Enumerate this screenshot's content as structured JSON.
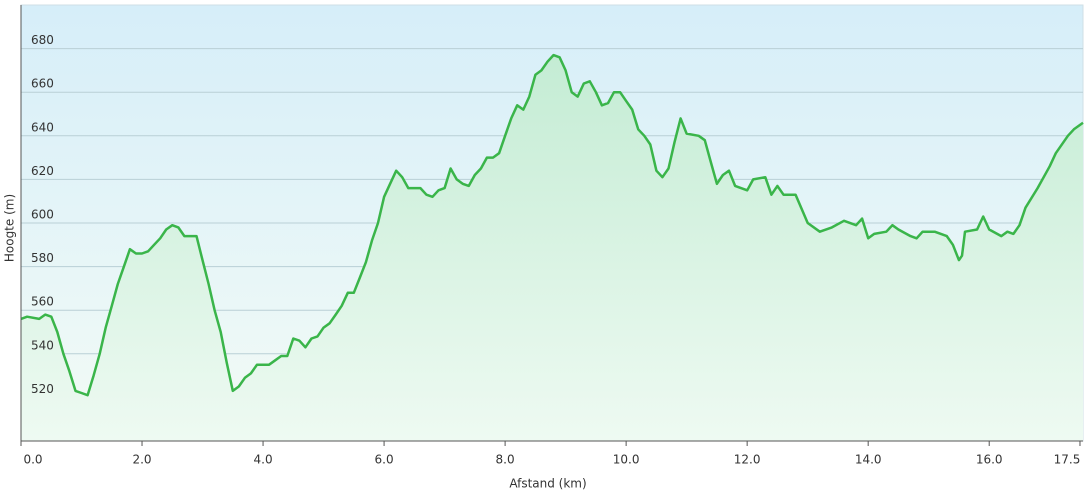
{
  "chart_data": {
    "type": "area",
    "x_label": "Afstand  (km)",
    "y_label": "Hoogte (m)",
    "x": [
      0,
      0.1,
      0.3,
      0.4,
      0.5,
      0.6,
      0.7,
      0.8,
      0.9,
      1.0,
      1.1,
      1.2,
      1.3,
      1.4,
      1.5,
      1.6,
      1.7,
      1.8,
      1.9,
      2.0,
      2.1,
      2.2,
      2.3,
      2.4,
      2.5,
      2.6,
      2.7,
      2.9,
      3.0,
      3.1,
      3.2,
      3.3,
      3.4,
      3.5,
      3.6,
      3.7,
      3.8,
      3.9,
      4.1,
      4.2,
      4.3,
      4.4,
      4.5,
      4.6,
      4.7,
      4.8,
      4.9,
      5.0,
      5.1,
      5.2,
      5.3,
      5.4,
      5.5,
      5.6,
      5.7,
      5.8,
      5.9,
      6.0,
      6.1,
      6.2,
      6.3,
      6.4,
      6.6,
      6.7,
      6.8,
      6.9,
      7.0,
      7.1,
      7.2,
      7.3,
      7.4,
      7.5,
      7.6,
      7.7,
      7.8,
      7.9,
      8.0,
      8.1,
      8.2,
      8.3,
      8.4,
      8.5,
      8.6,
      8.7,
      8.8,
      8.9,
      9.0,
      9.1,
      9.2,
      9.3,
      9.4,
      9.5,
      9.6,
      9.7,
      9.8,
      9.9,
      10.0,
      10.1,
      10.2,
      10.3,
      10.4,
      10.5,
      10.6,
      10.7,
      10.8,
      10.9,
      11.0,
      11.2,
      11.3,
      11.4,
      11.5,
      11.6,
      11.7,
      11.8,
      12.0,
      12.1,
      12.3,
      12.4,
      12.5,
      12.6,
      12.8,
      13.0,
      13.2,
      13.4,
      13.6,
      13.8,
      13.9,
      14.0,
      14.1,
      14.3,
      14.4,
      14.5,
      14.7,
      14.8,
      14.9,
      15.1,
      15.3,
      15.4,
      15.5,
      15.55,
      15.6,
      15.8,
      15.9,
      16.0,
      16.2,
      16.3,
      16.4,
      16.5,
      16.6,
      16.8,
      17.0,
      17.1,
      17.3,
      17.4,
      17.55
    ],
    "series": [
      {
        "color": "#3ab54a",
        "values": [
          556,
          557,
          556,
          558,
          557,
          550,
          540,
          532,
          523,
          522,
          521,
          530,
          540,
          552,
          562,
          572,
          580,
          588,
          586,
          586,
          587,
          590,
          593,
          597,
          599,
          598,
          594,
          594,
          583,
          572,
          560,
          550,
          536,
          523,
          525,
          529,
          531,
          535,
          535,
          537,
          539,
          539,
          547,
          546,
          543,
          547,
          548,
          552,
          554,
          558,
          562,
          568,
          568,
          575,
          582,
          592,
          600,
          612,
          618,
          624,
          621,
          616,
          616,
          613,
          612,
          615,
          616,
          625,
          620,
          618,
          617,
          622,
          625,
          630,
          630,
          632,
          640,
          648,
          654,
          652,
          658,
          668,
          670,
          674,
          677,
          676,
          670,
          660,
          658,
          664,
          665,
          660,
          654,
          655,
          660,
          660,
          656,
          652,
          643,
          640,
          636,
          624,
          621,
          625,
          637,
          648,
          641,
          640,
          638,
          628,
          618,
          622,
          624,
          617,
          615,
          620,
          621,
          613,
          617,
          613,
          613,
          600,
          596,
          598,
          601,
          599,
          602,
          593,
          595,
          596,
          599,
          597,
          594,
          593,
          596,
          596,
          594,
          590,
          583,
          585,
          596,
          597,
          603,
          597,
          594,
          596,
          595,
          599,
          607,
          616,
          626,
          632,
          640,
          643,
          646
        ]
      }
    ],
    "xlim": [
      0,
      17.55
    ],
    "ylim": [
      500,
      700
    ],
    "xticks": [
      {
        "value": 0,
        "label": "0.0"
      },
      {
        "value": 2,
        "label": "2.0"
      },
      {
        "value": 4,
        "label": "4.0"
      },
      {
        "value": 6,
        "label": "6.0"
      },
      {
        "value": 8,
        "label": "8.0"
      },
      {
        "value": 10,
        "label": "10.0"
      },
      {
        "value": 12,
        "label": "12.0"
      },
      {
        "value": 14,
        "label": "14.0"
      },
      {
        "value": 16,
        "label": "16.0"
      },
      {
        "value": 17.5,
        "label": "17.5"
      }
    ],
    "yticks": [
      520,
      540,
      560,
      580,
      600,
      620,
      640,
      660,
      680
    ],
    "grid": true
  }
}
